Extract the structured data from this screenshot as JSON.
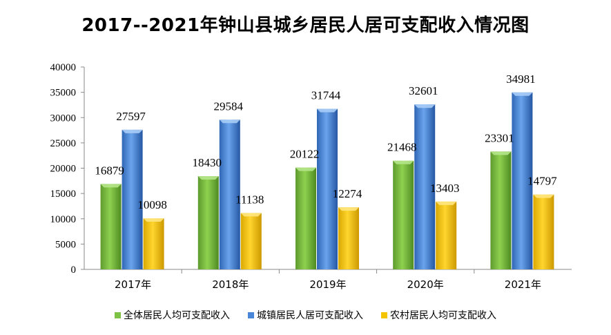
{
  "chart_data": {
    "type": "bar",
    "title": "2017--2021年钟山县城乡居民人居可支配收入情况图",
    "categories": [
      "2017年",
      "2018年",
      "2019年",
      "2020年",
      "2021年"
    ],
    "series": [
      {
        "name": "全体居民人均可支配收入",
        "values": [
          16879,
          18430,
          20122,
          21468,
          23301
        ],
        "color": "#7DC242"
      },
      {
        "name": "城镇居民人居可支配收入",
        "values": [
          27597,
          29584,
          31744,
          32601,
          34981
        ],
        "color": "#4A86D8"
      },
      {
        "name": "农村居民人均可支配收入",
        "values": [
          10098,
          11138,
          12274,
          13403,
          14797
        ],
        "color": "#F5C400"
      }
    ],
    "yticks": [
      "0",
      "5000",
      "10000",
      "15000",
      "20000",
      "25000",
      "30000",
      "35000",
      "40000"
    ],
    "ylim": [
      0,
      40000
    ],
    "grid": false,
    "legend": "bottom"
  }
}
